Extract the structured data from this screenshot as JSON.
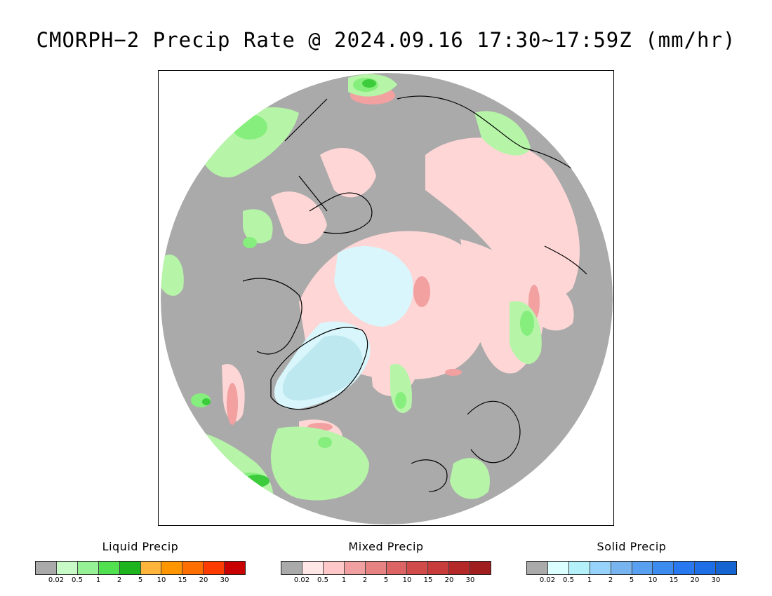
{
  "title": "CMORPH−2 Precip Rate @ 2024.09.16 17:30∼17:59Z (mm/hr)",
  "map": {
    "projection": "north-polar-stereographic",
    "colors": {
      "no_precip": "#aaaaaa",
      "liquid_light": "#b6f5a8",
      "liquid_mid": "#86ee7c",
      "liquid_heavy": "#3ccc3c",
      "mixed_light": "#ffd6d6",
      "mixed_mid": "#f2a0a0",
      "mixed_heavy": "#e06060",
      "solid_light": "#d8f6fb",
      "solid_mid": "#bde8f0",
      "coastline": "#000000"
    }
  },
  "legends": [
    {
      "id": "liquid",
      "title": "Liquid Precip",
      "colors": [
        "#aaaaaa",
        "#c8fac8",
        "#96f096",
        "#50e050",
        "#1eb41e",
        "#ffb43c",
        "#ff9600",
        "#ff6e00",
        "#ff3c00",
        "#c80000"
      ],
      "ticks": [
        "0.02",
        "0.5",
        "1",
        "2",
        "5",
        "10",
        "15",
        "20",
        "30"
      ]
    },
    {
      "id": "mixed",
      "title": "Mixed Precip",
      "colors": [
        "#aaaaaa",
        "#ffe6e6",
        "#ffc8c8",
        "#f0a0a0",
        "#e68282",
        "#dc6464",
        "#d24b4b",
        "#c83c3c",
        "#b42828",
        "#a01e1e"
      ],
      "ticks": [
        "0.02",
        "0.5",
        "1",
        "2",
        "5",
        "10",
        "15",
        "20",
        "30"
      ]
    },
    {
      "id": "solid",
      "title": "Solid Precip",
      "colors": [
        "#aaaaaa",
        "#dcffff",
        "#b4f0fa",
        "#96d2fa",
        "#78b4f0",
        "#5aa0f0",
        "#3c8cf0",
        "#2878f0",
        "#1e6ee6",
        "#1464d2"
      ],
      "ticks": [
        "0.02",
        "0.5",
        "1",
        "2",
        "5",
        "10",
        "15",
        "20",
        "30"
      ]
    }
  ]
}
